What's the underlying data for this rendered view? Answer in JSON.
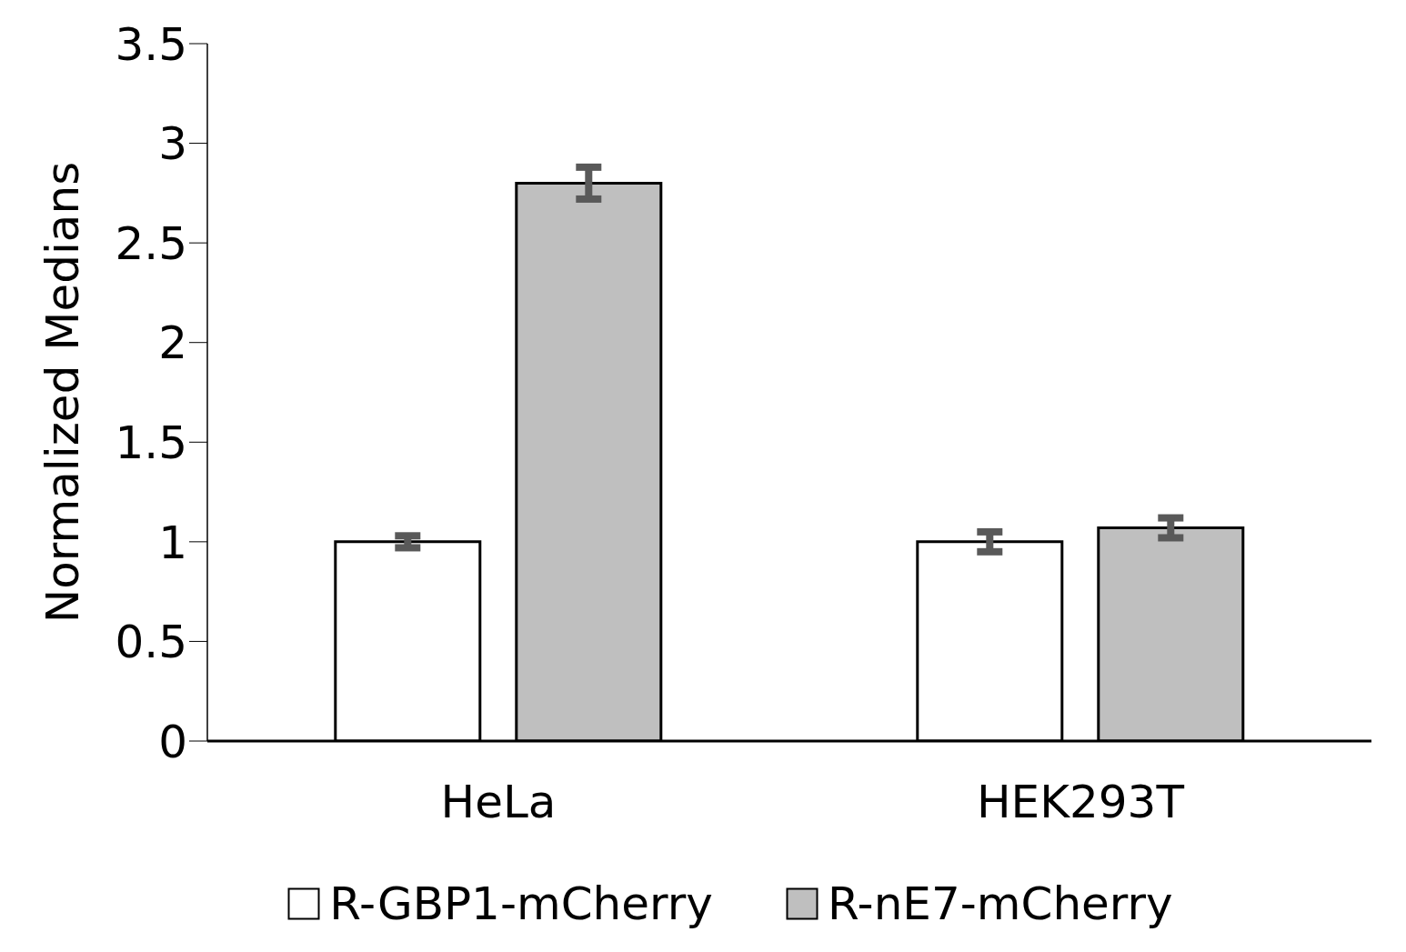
{
  "chart_data": {
    "type": "bar",
    "ylabel": "Normalized Medians",
    "categories": [
      "HeLa",
      "HEK293T"
    ],
    "series": [
      {
        "name": "R-GBP1-mCherry",
        "color": "#ffffff",
        "values": [
          1.0,
          1.0
        ],
        "errors": [
          0.03,
          0.05
        ]
      },
      {
        "name": "R-nE7-mCherry",
        "color": "#bfbfbf",
        "values": [
          2.8,
          1.07
        ],
        "errors": [
          0.08,
          0.05
        ]
      }
    ],
    "ylim": [
      0,
      3.5
    ],
    "yticks": [
      0,
      0.5,
      1,
      1.5,
      2,
      2.5,
      3,
      3.5
    ],
    "grid": false,
    "legend": "bottom"
  }
}
